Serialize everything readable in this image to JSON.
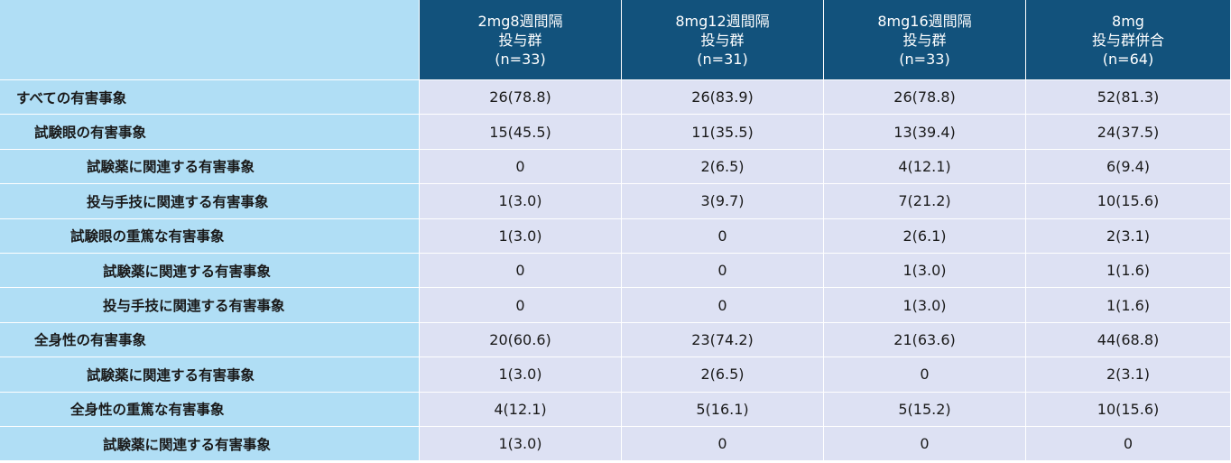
{
  "header": {
    "groups": [
      {
        "line1": "2mg8週間隔",
        "line2": "投与群",
        "n": "(n=33)"
      },
      {
        "line1": "8mg12週間隔",
        "line2": "投与群",
        "n": "(n=31)"
      },
      {
        "line1": "8mg16週間隔",
        "line2": "投与群",
        "n": "(n=33)"
      },
      {
        "line1": "8mg",
        "line2": "投与群併合",
        "n": "(n=64)"
      }
    ]
  },
  "rows": [
    {
      "label": "すべての有害事象",
      "v": [
        "26(78.8)",
        "26(83.9)",
        "26(78.8)",
        "52(81.3)"
      ]
    },
    {
      "label": "試験眼の有害事象",
      "v": [
        "15(45.5)",
        "11(35.5)",
        "13(39.4)",
        "24(37.5)"
      ]
    },
    {
      "label": "試験薬に関連する有害事象",
      "v": [
        "0",
        "2(6.5)",
        "4(12.1)",
        "6(9.4)"
      ]
    },
    {
      "label": "投与手技に関連する有害事象",
      "v": [
        "1(3.0)",
        "3(9.7)",
        "7(21.2)",
        "10(15.6)"
      ]
    },
    {
      "label": "試験眼の重篤な有害事象",
      "v": [
        "1(3.0)",
        "0",
        "2(6.1)",
        "2(3.1)"
      ]
    },
    {
      "label": "試験薬に関連する有害事象",
      "v": [
        "0",
        "0",
        "1(3.0)",
        "1(1.6)"
      ]
    },
    {
      "label": "投与手技に関連する有害事象",
      "v": [
        "0",
        "0",
        "1(3.0)",
        "1(1.6)"
      ]
    },
    {
      "label": "全身性の有害事象",
      "v": [
        "20(60.6)",
        "23(74.2)",
        "21(63.6)",
        "44(68.8)"
      ]
    },
    {
      "label": "試験薬に関連する有害事象",
      "v": [
        "1(3.0)",
        "2(6.5)",
        "0",
        "2(3.1)"
      ]
    },
    {
      "label": "全身性の重篤な有害事象",
      "v": [
        "4(12.1)",
        "5(16.1)",
        "5(15.2)",
        "10(15.6)"
      ]
    },
    {
      "label": "試験薬に関連する有害事象",
      "v": [
        "1(3.0)",
        "0",
        "0",
        "0"
      ]
    }
  ],
  "colors": {
    "header_bg": "#12527c",
    "label_bg": "#b0def5",
    "value_bg": "#dde1f3"
  }
}
